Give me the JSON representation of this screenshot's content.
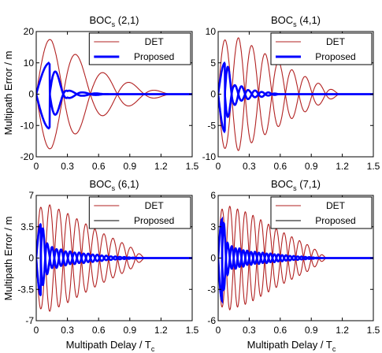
{
  "figure": {
    "ylabel": "Multipath Error / m",
    "xlabel": "Multipath Delay / T",
    "xlabel_sub": "c"
  },
  "chart_data": [
    {
      "type": "line",
      "title": "BOC",
      "title_sub": "s",
      "title_args": "(2,1)",
      "xlim": [
        0,
        1.5
      ],
      "ylim": [
        -20,
        20
      ],
      "xticks": [
        "0",
        "0.3",
        "0.6",
        "0.9",
        "1.2",
        "1.5"
      ],
      "yticks": [
        "-20",
        "-10",
        "0",
        "10",
        "20"
      ],
      "legend": [
        {
          "label": "DET",
          "color": "#b22222",
          "width": 1
        },
        {
          "label": "Proposed",
          "color": "#0000ff",
          "width": 3
        }
      ],
      "series": [
        {
          "name": "DET",
          "color": "#b22222",
          "envelope": [
            {
              "x": 0,
              "y": 17
            },
            {
              "x": 0.15,
              "y": 17.5
            },
            {
              "x": 0.3,
              "y": 15
            },
            {
              "x": 0.55,
              "y": 8
            },
            {
              "x": 0.8,
              "y": 5
            },
            {
              "x": 1.0,
              "y": 2.5
            },
            {
              "x": 1.3,
              "y": 0
            }
          ],
          "period": 0.26,
          "envelope_neg_ratio": 1.0
        },
        {
          "name": "Proposed",
          "color": "#0000ff",
          "envelope": [
            {
              "x": 0,
              "y": 10
            },
            {
              "x": 0.12,
              "y": 10
            },
            {
              "x": 0.22,
              "y": 5
            },
            {
              "x": 0.3,
              "y": 1.2
            },
            {
              "x": 0.45,
              "y": 0.5
            },
            {
              "x": 0.7,
              "y": 0
            }
          ],
          "period": 0.26,
          "envelope_neg_ratio": 1.1
        }
      ]
    },
    {
      "type": "line",
      "title": "BOC",
      "title_sub": "s",
      "title_args": "(4,1)",
      "xlim": [
        0,
        1.5
      ],
      "ylim": [
        -10,
        10
      ],
      "xticks": [
        "0",
        "0.3",
        "0.6",
        "0.9",
        "1.2",
        "1.5"
      ],
      "yticks": [
        "-10",
        "-5",
        "0",
        "5",
        "10"
      ],
      "legend": [
        {
          "label": "DET",
          "color": "#b22222",
          "width": 1
        },
        {
          "label": "Proposed",
          "color": "#0000ff",
          "width": 3
        }
      ],
      "series": [
        {
          "name": "DET",
          "color": "#b22222",
          "envelope": [
            {
              "x": 0,
              "y": 8.5
            },
            {
              "x": 0.2,
              "y": 9
            },
            {
              "x": 0.4,
              "y": 7
            },
            {
              "x": 0.7,
              "y": 4
            },
            {
              "x": 1.0,
              "y": 1.5
            },
            {
              "x": 1.2,
              "y": 0
            }
          ],
          "period": 0.13,
          "envelope_neg_ratio": 1.0
        },
        {
          "name": "Proposed",
          "color": "#0000ff",
          "envelope": [
            {
              "x": 0,
              "y": 5
            },
            {
              "x": 0.06,
              "y": 5
            },
            {
              "x": 0.15,
              "y": 1.5
            },
            {
              "x": 0.3,
              "y": 0.6
            },
            {
              "x": 0.6,
              "y": 0
            }
          ],
          "period": 0.13,
          "envelope_neg_ratio": 1.2
        }
      ]
    },
    {
      "type": "line",
      "title": "BOC",
      "title_sub": "s",
      "title_args": "(6,1)",
      "xlim": [
        0,
        1.5
      ],
      "ylim": [
        -7,
        7
      ],
      "xticks": [
        "0",
        "0.3",
        "0.6",
        "0.9",
        "1.2",
        "1.5"
      ],
      "yticks": [
        "-7",
        "-3.5",
        "0",
        "3.5",
        "7"
      ],
      "legend": [
        {
          "label": "DET",
          "color": "#b22222",
          "width": 1
        },
        {
          "label": "Proposed",
          "color": "#000000",
          "width": 1
        }
      ],
      "series": [
        {
          "name": "DET",
          "color": "#b22222",
          "envelope": [
            {
              "x": 0,
              "y": 5.5
            },
            {
              "x": 0.12,
              "y": 6
            },
            {
              "x": 0.3,
              "y": 5
            },
            {
              "x": 0.6,
              "y": 3
            },
            {
              "x": 0.9,
              "y": 1.3
            },
            {
              "x": 1.05,
              "y": 0
            }
          ],
          "period": 0.087,
          "envelope_neg_ratio": 1.0
        },
        {
          "name": "Proposed",
          "color": "#0000ff",
          "envelope": [
            {
              "x": 0,
              "y": 3.8
            },
            {
              "x": 0.04,
              "y": 3.8
            },
            {
              "x": 0.12,
              "y": 1.2
            },
            {
              "x": 0.3,
              "y": 0.7
            },
            {
              "x": 0.7,
              "y": 0.2
            },
            {
              "x": 1.0,
              "y": 0
            }
          ],
          "period": 0.087,
          "envelope_neg_ratio": 1.1
        }
      ]
    },
    {
      "type": "line",
      "title": "BOC",
      "title_sub": "s",
      "title_args": "(7,1)",
      "xlim": [
        0,
        1.5
      ],
      "ylim": [
        -6,
        6
      ],
      "xticks": [
        "0",
        "0.3",
        "0.6",
        "0.9",
        "1.2",
        "1.5"
      ],
      "yticks": [
        "-6",
        "-3",
        "0",
        "3",
        "6"
      ],
      "legend": [
        {
          "label": "DET",
          "color": "#b22222",
          "width": 1
        },
        {
          "label": "Proposed",
          "color": "#000000",
          "width": 1
        }
      ],
      "series": [
        {
          "name": "DET",
          "color": "#b22222",
          "envelope": [
            {
              "x": 0,
              "y": 4.5
            },
            {
              "x": 0.1,
              "y": 5
            },
            {
              "x": 0.3,
              "y": 4.3
            },
            {
              "x": 0.6,
              "y": 2.6
            },
            {
              "x": 0.9,
              "y": 1.1
            },
            {
              "x": 1.05,
              "y": 0
            }
          ],
          "period": 0.075,
          "envelope_neg_ratio": 1.0
        },
        {
          "name": "Proposed",
          "color": "#0000ff",
          "envelope": [
            {
              "x": 0,
              "y": 3.7
            },
            {
              "x": 0.04,
              "y": 3.7
            },
            {
              "x": 0.1,
              "y": 1.1
            },
            {
              "x": 0.3,
              "y": 0.6
            },
            {
              "x": 0.7,
              "y": 0.2
            },
            {
              "x": 1.0,
              "y": 0
            }
          ],
          "period": 0.075,
          "envelope_neg_ratio": 1.1
        }
      ]
    }
  ]
}
